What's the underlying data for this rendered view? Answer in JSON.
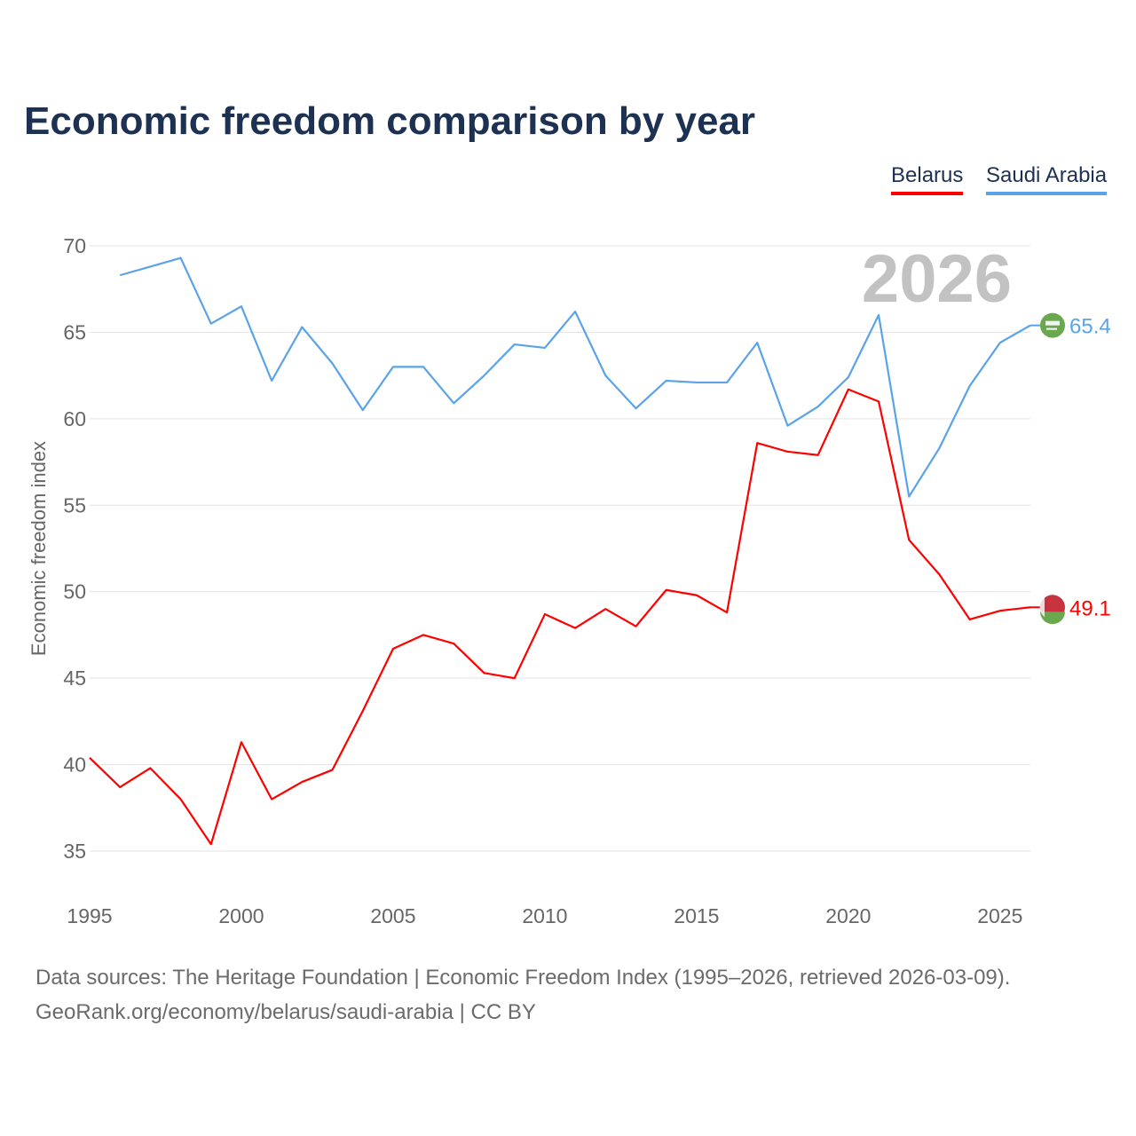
{
  "chart_data": {
    "type": "line",
    "title": "Economic freedom comparison by year",
    "xlabel": "",
    "ylabel": "Economic freedom index",
    "xlim": [
      1995,
      2026
    ],
    "ylim": [
      35,
      70
    ],
    "yticks": [
      35,
      40,
      45,
      50,
      55,
      60,
      65,
      70
    ],
    "xticks": [
      1995,
      2000,
      2005,
      2010,
      2015,
      2020,
      2025
    ],
    "grid": true,
    "legend_position": "top-right",
    "year_watermark": "2026",
    "series": [
      {
        "name": "Belarus",
        "color": "#ff0000",
        "end_label": "49.1",
        "x": [
          1995,
          1996,
          1997,
          1998,
          1999,
          2000,
          2001,
          2002,
          2003,
          2004,
          2005,
          2006,
          2007,
          2008,
          2009,
          2010,
          2011,
          2012,
          2013,
          2014,
          2015,
          2016,
          2017,
          2018,
          2019,
          2020,
          2021,
          2022,
          2023,
          2024,
          2025,
          2026
        ],
        "y": [
          40.4,
          38.7,
          39.8,
          38.0,
          35.4,
          41.3,
          38.0,
          39.0,
          39.7,
          43.1,
          46.7,
          47.5,
          47.0,
          45.3,
          45.0,
          48.7,
          47.9,
          49.0,
          48.0,
          50.1,
          49.8,
          48.8,
          58.6,
          58.1,
          57.9,
          61.7,
          61.0,
          53.0,
          51.0,
          48.4,
          48.9,
          49.1
        ]
      },
      {
        "name": "Saudi Arabia",
        "color": "#5aa3e8",
        "end_label": "65.4",
        "x": [
          1996,
          1997,
          1998,
          1999,
          2000,
          2001,
          2002,
          2003,
          2004,
          2005,
          2006,
          2007,
          2008,
          2009,
          2010,
          2011,
          2012,
          2013,
          2014,
          2015,
          2016,
          2017,
          2018,
          2019,
          2020,
          2021,
          2022,
          2023,
          2024,
          2025,
          2026
        ],
        "y": [
          68.3,
          68.8,
          69.3,
          65.5,
          66.5,
          62.2,
          65.3,
          63.2,
          60.5,
          63.0,
          63.0,
          60.9,
          62.5,
          64.3,
          64.1,
          66.2,
          62.5,
          60.6,
          62.2,
          62.1,
          62.1,
          64.4,
          59.6,
          60.7,
          62.4,
          66.0,
          55.5,
          58.3,
          61.9,
          64.4,
          65.4
        ]
      }
    ]
  },
  "footer": {
    "sources": "Data sources: The Heritage Foundation | Economic Freedom Index (1995–2026, retrieved 2026-03-09).",
    "credit": "GeoRank.org/economy/belarus/saudi-arabia | CC BY"
  }
}
